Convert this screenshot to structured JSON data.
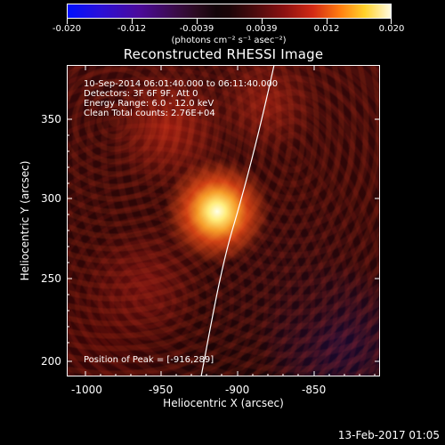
{
  "colorbar": {
    "tick_labels": [
      "-0.020",
      "-0.012",
      "-0.0039",
      "0.0039",
      "0.012",
      "0.020"
    ],
    "units": "(photons cm⁻² s⁻¹ asec⁻²)"
  },
  "title": "Reconstructed RHESSI Image",
  "annotations": {
    "time_range": "10-Sep-2014 06:01:40.000 to 06:11:40.000",
    "detectors": "Detectors: 3F 6F 9F, Att 0",
    "energy_range": "Energy Range: 6.0 - 12.0 keV",
    "method_counts": "Clean     Total counts: 2.76E+04",
    "peak": "Position of Peak = [-916,289]"
  },
  "axes": {
    "x_label": "Heliocentric X (arcsec)",
    "y_label": "Heliocentric Y (arcsec)",
    "x_ticks": [
      "-1000",
      "-950",
      "-900",
      "-850"
    ],
    "y_ticks": [
      "350",
      "300",
      "250",
      "200"
    ]
  },
  "footer": {
    "timestamp": "13-Feb-2017 01:05"
  },
  "colors": {
    "background": "#000000",
    "limb_line": "#ffffff"
  }
}
